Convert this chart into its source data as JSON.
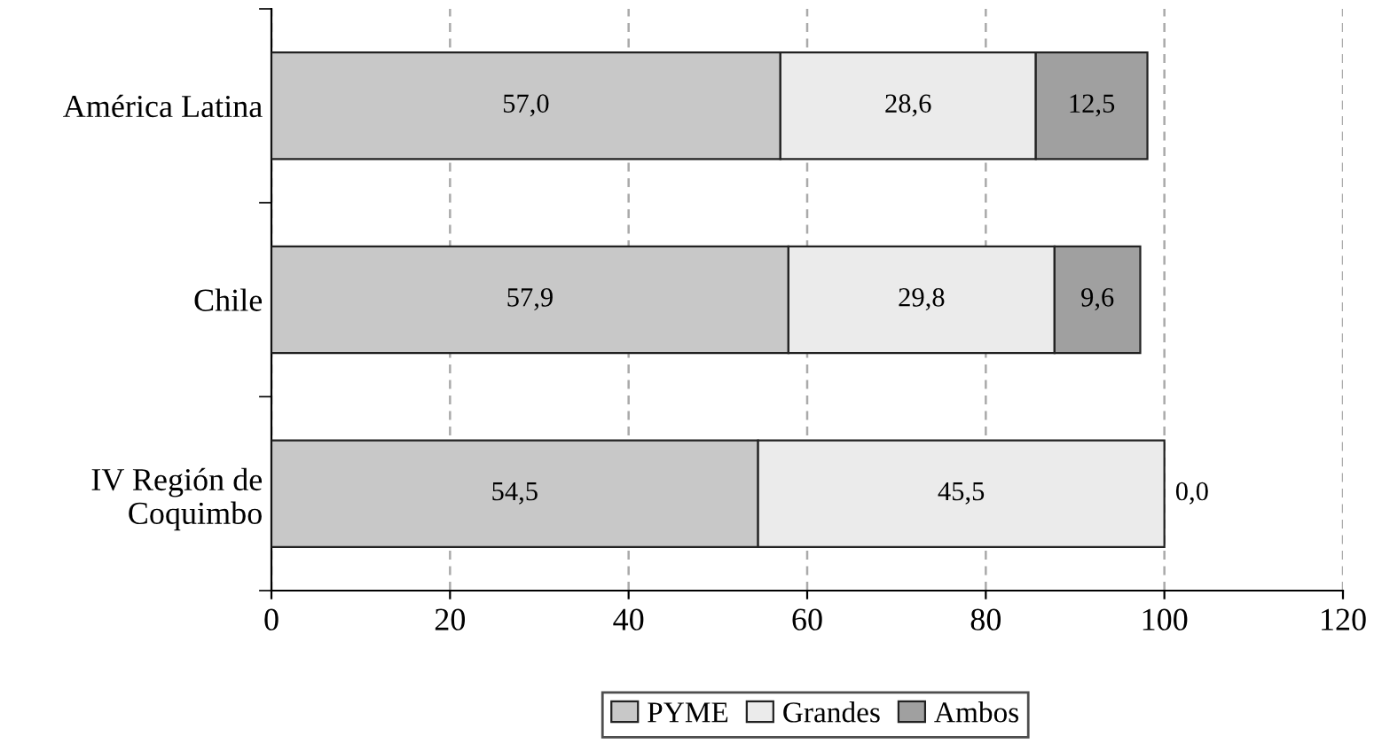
{
  "chart_data": {
    "type": "bar",
    "orientation": "horizontal",
    "stacked": true,
    "categories": [
      "América Latina",
      "Chile",
      "IV Región de\nCoquimbo"
    ],
    "series": [
      {
        "name": "PYME",
        "color": "#c8c8c8",
        "values": [
          57.0,
          57.9,
          54.5
        ],
        "value_labels": [
          "57,0",
          "57,9",
          "54,5"
        ]
      },
      {
        "name": "Grandes",
        "color": "#ebebeb",
        "values": [
          28.6,
          29.8,
          45.5
        ],
        "value_labels": [
          "28,6",
          "29,8",
          "45,5"
        ]
      },
      {
        "name": "Ambos",
        "color": "#a0a0a0",
        "values": [
          12.5,
          9.6,
          0.0
        ],
        "value_labels": [
          "12,5",
          "9,6",
          "0,0"
        ]
      }
    ],
    "xlim": [
      0,
      120
    ],
    "xticks": [
      0,
      20,
      40,
      60,
      80,
      100,
      120
    ],
    "grid": "x",
    "legend": "bottom"
  }
}
